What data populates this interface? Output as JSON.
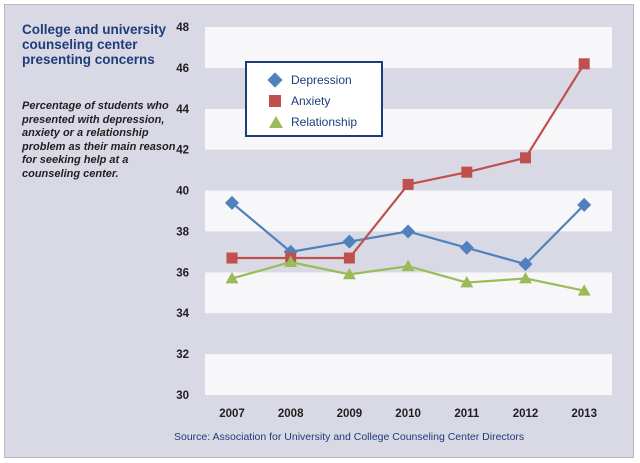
{
  "header": {
    "title": "College and university counseling center presenting concerns",
    "subtitle": "Percentage of students who presented with depression, anxiety or a relationship problem as their main reason for seeking help at a counseling center."
  },
  "source": "Source: Association for University and College Counseling Center Directors",
  "colors": {
    "Depression": "#4f81bd",
    "Anxiety": "#c0504d",
    "Relationship": "#9bbb59",
    "title": "#1f3c7a"
  },
  "chart_data": {
    "type": "line",
    "categories": [
      "2007",
      "2008",
      "2009",
      "2010",
      "2011",
      "2012",
      "2013"
    ],
    "ylim": [
      30,
      48
    ],
    "yticks": [
      30,
      32,
      34,
      36,
      38,
      40,
      42,
      44,
      46,
      48
    ],
    "grid": "alternating horizontal bands",
    "legend_position": "top-left",
    "series": [
      {
        "name": "Depression",
        "marker": "diamond",
        "values": [
          39.4,
          37.0,
          37.5,
          38.0,
          37.2,
          36.4,
          39.3
        ]
      },
      {
        "name": "Anxiety",
        "marker": "square",
        "values": [
          36.7,
          36.7,
          36.7,
          40.3,
          40.9,
          41.6,
          46.2
        ]
      },
      {
        "name": "Relationship",
        "marker": "triangle",
        "values": [
          35.7,
          36.5,
          35.9,
          36.3,
          35.5,
          35.7,
          35.1
        ]
      }
    ]
  }
}
